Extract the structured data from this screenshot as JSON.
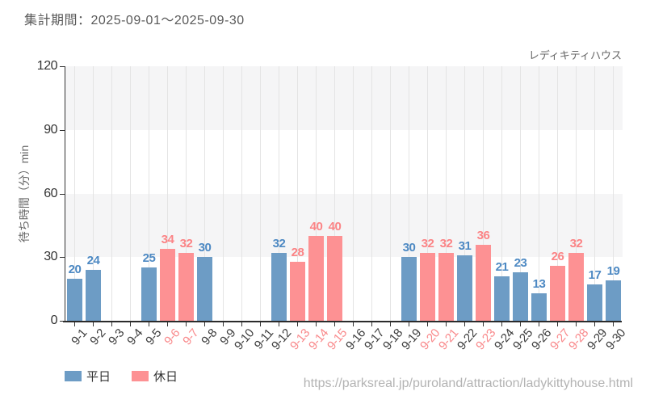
{
  "header": {
    "period_label": "集計期間：2025-09-01～2025-09-30"
  },
  "chart_data": {
    "type": "bar",
    "title": "レディキティハウス",
    "xlabel": "",
    "ylabel": "待ち時間（分）min",
    "ylim": [
      0,
      120
    ],
    "yticks": [
      0,
      30,
      60,
      90,
      120
    ],
    "grid": true,
    "legend_position": "bottom-left",
    "categories": [
      "9-1",
      "9-2",
      "9-3",
      "9-4",
      "9-5",
      "9-6",
      "9-7",
      "9-8",
      "9-9",
      "9-10",
      "9-11",
      "9-12",
      "9-13",
      "9-14",
      "9-15",
      "9-16",
      "9-17",
      "9-18",
      "9-19",
      "9-20",
      "9-21",
      "9-22",
      "9-23",
      "9-24",
      "9-25",
      "9-26",
      "9-27",
      "9-28",
      "9-29",
      "9-30"
    ],
    "series": [
      {
        "name": "平日",
        "color": "#6d9cc5",
        "label_color": "#4d89c3",
        "values": [
          20,
          24,
          null,
          null,
          25,
          null,
          null,
          30,
          null,
          null,
          null,
          32,
          null,
          null,
          null,
          null,
          null,
          null,
          30,
          null,
          null,
          31,
          null,
          21,
          23,
          13,
          null,
          null,
          17,
          19
        ]
      },
      {
        "name": "休日",
        "color": "#fd9193",
        "label_color": "#fb8486",
        "values": [
          null,
          null,
          null,
          null,
          null,
          34,
          32,
          null,
          null,
          null,
          null,
          null,
          28,
          40,
          40,
          null,
          null,
          null,
          null,
          32,
          32,
          null,
          36,
          null,
          null,
          null,
          26,
          32,
          null,
          null
        ]
      }
    ],
    "axis_colors": {
      "weekday_tick_label": "#3d3d3d",
      "holiday_tick_label": "#f9898b",
      "band_fill": "#f5f5f6",
      "gridline": "#e4e4e4"
    }
  },
  "legend": {
    "items": [
      {
        "label": "平日",
        "color": "#6d9cc5"
      },
      {
        "label": "休日",
        "color": "#fd9193"
      }
    ]
  },
  "footer": {
    "url": "https://parksreal.jp/puroland/attraction/ladykittyhouse.html"
  }
}
